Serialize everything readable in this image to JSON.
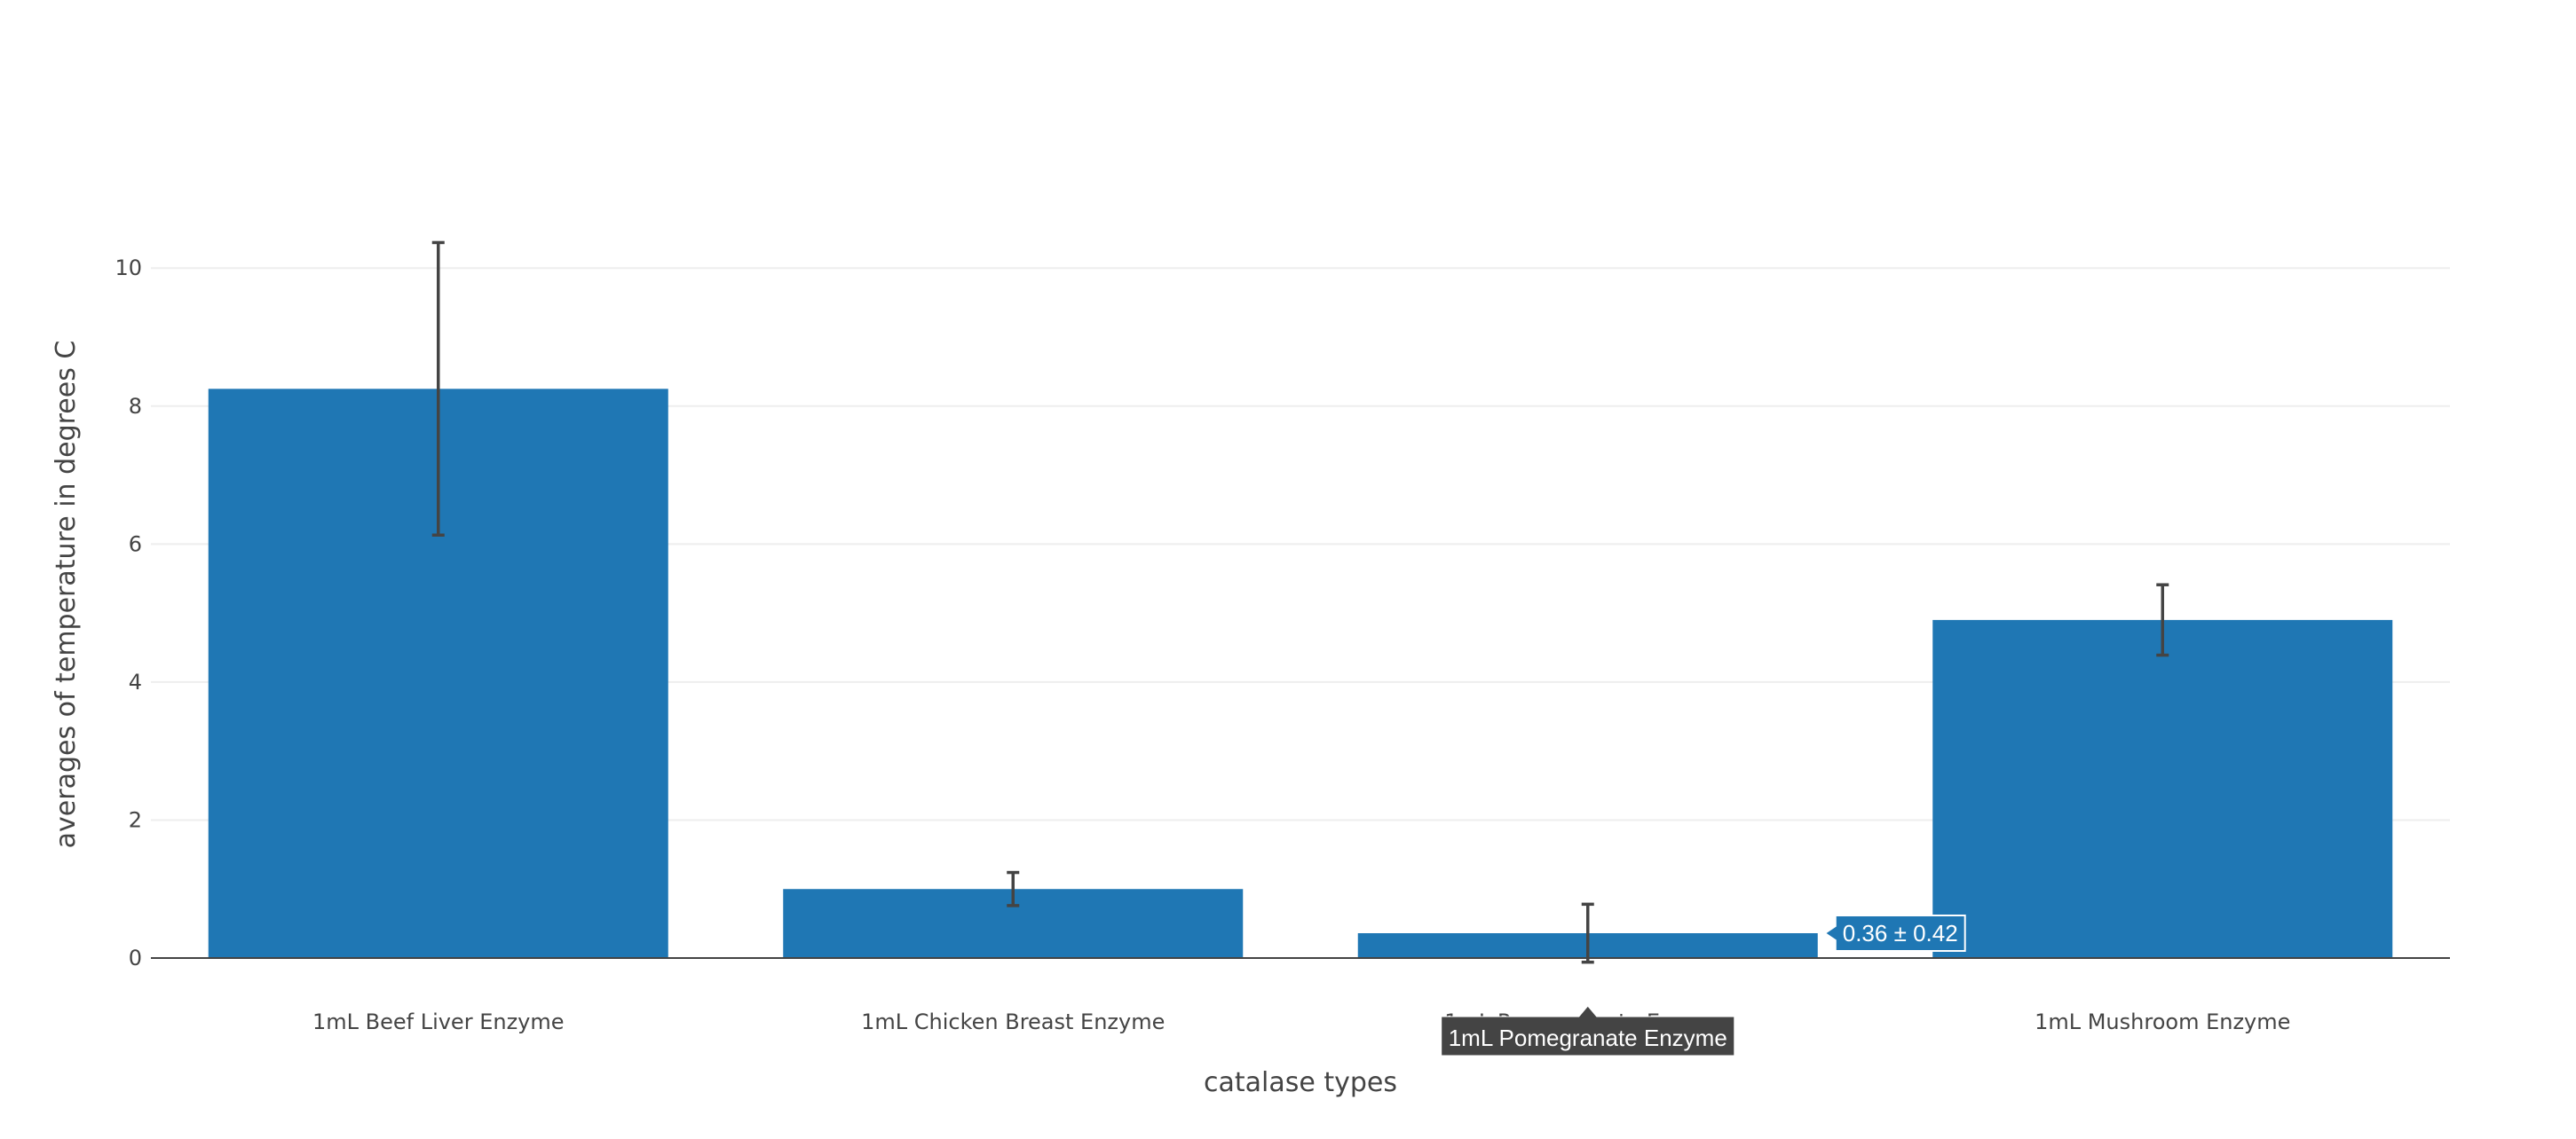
{
  "chart_data": {
    "type": "bar",
    "title": "",
    "xlabel": "catalase types",
    "ylabel": "averages of temperature in degrees C",
    "categories": [
      "1mL Beef Liver Enzyme",
      "1mL Chicken Breast Enzyme",
      "1mL Pomegranate Enzyme",
      "1mL Mushroom Enzyme"
    ],
    "series": [
      {
        "values": [
          8.25,
          1.0,
          0.36,
          4.9
        ],
        "errors": [
          2.12,
          0.24,
          0.42,
          0.51
        ]
      }
    ],
    "ylim": [
      0,
      10.8
    ],
    "yticks": [
      0,
      2,
      4,
      6,
      8,
      10
    ],
    "grid": true,
    "legend": "none",
    "colors": {
      "bar": "#1f77b4",
      "error_bar": "#444444",
      "grid": "#eeeeee",
      "axis_line": "#444444",
      "hover_label_bg": "#444444"
    },
    "hover": {
      "category_label": "1mL Pomegranate Enzyme",
      "value_label": "0.36 ± 0.42"
    }
  }
}
